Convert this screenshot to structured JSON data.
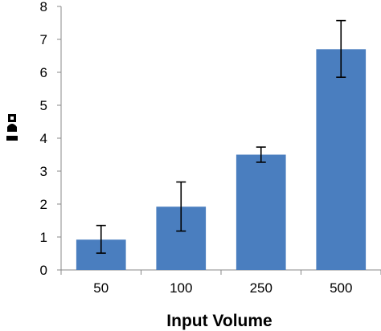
{
  "chart_data": {
    "type": "bar",
    "categories": [
      "50",
      "100",
      "250",
      "500"
    ],
    "values": [
      0.92,
      1.92,
      3.5,
      6.7
    ],
    "error_low": [
      0.51,
      1.18,
      3.27,
      5.85
    ],
    "error_high": [
      1.35,
      2.67,
      3.73,
      7.57
    ],
    "xlabel": "Input Volume",
    "ylabel": "",
    "ylim": [
      0,
      8
    ],
    "yticks": [
      "0",
      "1",
      "2",
      "3",
      "4",
      "5",
      "6",
      "7",
      "8"
    ],
    "grid": false,
    "legend": "none",
    "bar_color": "#4a7ebf",
    "error_bar_color": "#000000"
  }
}
